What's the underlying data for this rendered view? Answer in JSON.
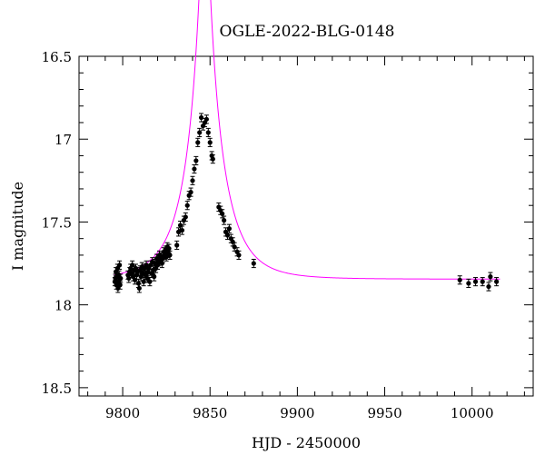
{
  "chart_data": {
    "type": "scatter",
    "title": "OGLE-2022-BLG-0148",
    "xlabel": "HJD - 2450000",
    "ylabel": "I magnitude",
    "xlim": [
      9775,
      10035
    ],
    "ylim": [
      18.55,
      16.5
    ],
    "y_inverted": true,
    "grid": false,
    "x_ticks": [
      9800,
      9850,
      9900,
      9950,
      10000
    ],
    "x_tick_labels": [
      "9800",
      "9850",
      "9900",
      "9950",
      "10000"
    ],
    "y_ticks": [
      16.5,
      17,
      17.5,
      18,
      18.5
    ],
    "y_tick_labels": [
      "16.5",
      "17",
      "17.5",
      "18",
      "18.5"
    ],
    "colors": {
      "points": "#000000",
      "model": "#ff00ff"
    },
    "series": [
      {
        "kind": "points-with-errorbars",
        "err": 0.025,
        "points": [
          [
            9795.5,
            17.86
          ],
          [
            9795.8,
            17.84
          ],
          [
            9796.1,
            17.8
          ],
          [
            9796.4,
            17.88
          ],
          [
            9796.7,
            17.83
          ],
          [
            9797.0,
            17.78
          ],
          [
            9797.3,
            17.9
          ],
          [
            9797.6,
            17.86
          ],
          [
            9797.9,
            17.82
          ],
          [
            9798.2,
            17.76
          ],
          [
            9798.5,
            17.88
          ],
          [
            9798.8,
            17.84
          ],
          [
            9803.0,
            17.82
          ],
          [
            9803.5,
            17.84
          ],
          [
            9804.0,
            17.8
          ],
          [
            9804.5,
            17.78
          ],
          [
            9805.0,
            17.81
          ],
          [
            9805.5,
            17.76
          ],
          [
            9806.0,
            17.83
          ],
          [
            9806.5,
            17.79
          ],
          [
            9807.0,
            17.85
          ],
          [
            9807.5,
            17.78
          ],
          [
            9808.0,
            17.82
          ],
          [
            9808.5,
            17.8
          ],
          [
            9809.0,
            17.87
          ],
          [
            9809.5,
            17.9
          ],
          [
            9810.0,
            17.79
          ],
          [
            9810.5,
            17.83
          ],
          [
            9811.0,
            17.77
          ],
          [
            9811.5,
            17.81
          ],
          [
            9812.0,
            17.86
          ],
          [
            9812.5,
            17.78
          ],
          [
            9813.0,
            17.82
          ],
          [
            9813.5,
            17.76
          ],
          [
            9814.0,
            17.84
          ],
          [
            9814.5,
            17.8
          ],
          [
            9815.0,
            17.78
          ],
          [
            9815.5,
            17.86
          ],
          [
            9816.0,
            17.76
          ],
          [
            9816.5,
            17.81
          ],
          [
            9817.0,
            17.74
          ],
          [
            9817.5,
            17.79
          ],
          [
            9818.0,
            17.83
          ],
          [
            9818.5,
            17.75
          ],
          [
            9819.0,
            17.78
          ],
          [
            9819.5,
            17.72
          ],
          [
            9820.0,
            17.76
          ],
          [
            9820.5,
            17.74
          ],
          [
            9821.0,
            17.7
          ],
          [
            9821.5,
            17.73
          ],
          [
            9822.0,
            17.71
          ],
          [
            9822.5,
            17.75
          ],
          [
            9823.0,
            17.72
          ],
          [
            9823.5,
            17.68
          ],
          [
            9824.0,
            17.7
          ],
          [
            9824.5,
            17.67
          ],
          [
            9825.0,
            17.71
          ],
          [
            9825.5,
            17.65
          ],
          [
            9826.0,
            17.69
          ],
          [
            9826.5,
            17.66
          ],
          [
            9827.0,
            17.7
          ],
          [
            9831.0,
            17.64
          ],
          [
            9832.0,
            17.56
          ],
          [
            9833.0,
            17.52
          ],
          [
            9834.0,
            17.55
          ],
          [
            9835.0,
            17.49
          ],
          [
            9836.0,
            17.47
          ],
          [
            9837.0,
            17.4
          ],
          [
            9838.0,
            17.34
          ],
          [
            9839.0,
            17.32
          ],
          [
            9840.0,
            17.25
          ],
          [
            9841.0,
            17.18
          ],
          [
            9842.0,
            17.13
          ],
          [
            9843.0,
            17.02
          ],
          [
            9844.0,
            16.96
          ],
          [
            9845.0,
            16.87
          ],
          [
            9846.0,
            16.92
          ],
          [
            9847.0,
            16.9
          ],
          [
            9848.0,
            16.88
          ],
          [
            9849.0,
            16.96
          ],
          [
            9850.0,
            17.02
          ],
          [
            9851.0,
            17.1
          ],
          [
            9851.6,
            17.12
          ],
          [
            9855.0,
            17.41
          ],
          [
            9856.0,
            17.43
          ],
          [
            9857.0,
            17.45
          ],
          [
            9858.0,
            17.49
          ],
          [
            9859.0,
            17.56
          ],
          [
            9860.0,
            17.58
          ],
          [
            9861.0,
            17.54
          ],
          [
            9862.0,
            17.6
          ],
          [
            9863.0,
            17.62
          ],
          [
            9864.0,
            17.65
          ],
          [
            9865.5,
            17.68
          ],
          [
            9866.5,
            17.7
          ],
          [
            9875.0,
            17.75
          ],
          [
            9993.0,
            17.85
          ],
          [
            9998.0,
            17.87
          ],
          [
            10002.0,
            17.86
          ],
          [
            10006.0,
            17.86
          ],
          [
            10009.5,
            17.89
          ],
          [
            10010.5,
            17.83
          ],
          [
            10014.0,
            17.86
          ]
        ]
      },
      {
        "kind": "model-curve",
        "t0": 9847,
        "u0": 0.112,
        "tE": 20,
        "base_mag": 17.845,
        "fs": 0.93,
        "x_range": [
          9795,
          10016
        ]
      }
    ]
  }
}
